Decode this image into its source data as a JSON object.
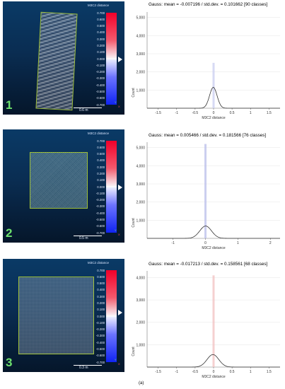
{
  "figure": {
    "caption": "(a)"
  },
  "panels": [
    {
      "number": "1",
      "viewer": {
        "scalebar_title": "M3C2 distance",
        "scalebar_ticks": [
          "0.700",
          "0.600",
          "0.500",
          "0.400",
          "0.300",
          "0.200",
          "0.100",
          "0.000",
          "-0.100",
          "-0.200",
          "-0.300",
          "-0.400",
          "-0.500",
          "-0.600",
          "-0.700"
        ],
        "distance_label": "0.6 m",
        "axis_y": "Y",
        "axis_x": "X"
      },
      "header": "Gauss: mean = -0.007196 / std.dev. = 0.101662 [90 classes]"
    },
    {
      "number": "2",
      "viewer": {
        "scalebar_title": "M3C2 distance",
        "scalebar_ticks": [
          "0.700",
          "0.600",
          "0.500",
          "0.400",
          "0.300",
          "0.200",
          "0.100",
          "0.000",
          "-0.100",
          "-0.200",
          "-0.300",
          "-0.400",
          "-0.500",
          "-0.600",
          "-0.700"
        ],
        "distance_label": "0.5 m",
        "axis_y": "Y",
        "axis_x": "X"
      },
      "header": "Gauss: mean = 0.005466 / std.dev. = 0.181566 [76 classes]"
    },
    {
      "number": "3",
      "viewer": {
        "scalebar_title": "M3C2 distance",
        "scalebar_ticks": [
          "0.700",
          "0.600",
          "0.500",
          "0.400",
          "0.300",
          "0.200",
          "0.100",
          "0.000",
          "-0.100",
          "-0.200",
          "-0.300",
          "-0.400",
          "-0.500",
          "-0.600",
          "-0.700"
        ],
        "distance_label": "0.3 m",
        "axis_y": "Y",
        "axis_x": "X"
      },
      "header": "Gauss: mean = -0.017213 / std.dev. = 0.158561 [68 classes]"
    }
  ],
  "colors": {
    "curve": "#333333",
    "spike_panel1": "#c9cdf0",
    "spike_panel2": "#b9bdea",
    "spike_panel3": "#f2c0c0",
    "grid": "#e6e6e6"
  },
  "chart_data": [
    {
      "type": "line",
      "title": "",
      "xlabel": "M3C2 distance",
      "ylabel": "Count",
      "xlim": [
        -1.8,
        1.8
      ],
      "ylim": [
        0,
        5300
      ],
      "x_ticks": [
        "-1.5",
        "-1",
        "-0.5",
        "0",
        "0.5",
        "1",
        "1.5"
      ],
      "y_ticks": [
        "1,000",
        "2,000",
        "3,000",
        "4,000",
        "5,000"
      ],
      "grid": true,
      "gauss": {
        "mean": -0.007196,
        "std": 0.101662,
        "peak": 1150
      },
      "histogram_spike": {
        "x": 0.0,
        "max": 2500
      }
    },
    {
      "type": "line",
      "title": "",
      "xlabel": "M3C2 distance",
      "ylabel": "Count",
      "xlim": [
        -1.8,
        2.3
      ],
      "ylim": [
        0,
        5300
      ],
      "x_ticks": [
        "-1",
        "0",
        "1",
        "2"
      ],
      "y_ticks": [
        "1,000",
        "2,000",
        "3,000",
        "4,000",
        "5,000"
      ],
      "grid": true,
      "gauss": {
        "mean": 0.005466,
        "std": 0.181566,
        "peak": 680
      },
      "histogram_spike": {
        "x": 0.0,
        "max": 5200
      }
    },
    {
      "type": "line",
      "title": "",
      "xlabel": "M3C2 distance",
      "ylabel": "Count",
      "xlim": [
        -1.8,
        1.8
      ],
      "ylim": [
        0,
        4300
      ],
      "x_ticks": [
        "-1.5",
        "-1",
        "-0.5",
        "0",
        "0.5",
        "1",
        "1.5"
      ],
      "y_ticks": [
        "1,000",
        "2,000",
        "3,000",
        "4,000"
      ],
      "grid": true,
      "gauss": {
        "mean": -0.017213,
        "std": 0.158561,
        "peak": 560
      },
      "histogram_spike": {
        "x": 0.0,
        "max": 4100
      }
    }
  ]
}
